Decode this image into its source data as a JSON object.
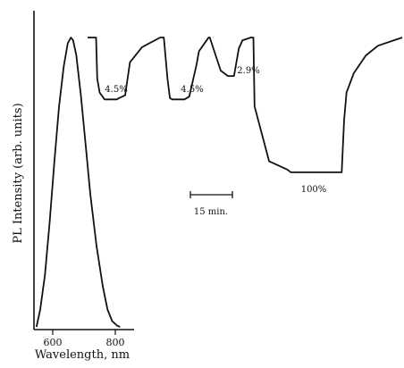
{
  "chart_data": [
    {
      "type": "line",
      "title": "",
      "xlabel": "Wavelength, nm",
      "ylabel": "PL Intensity (arb. units)",
      "x_ticks": [
        600,
        800
      ],
      "xlim": [
        540,
        860
      ],
      "grid": false,
      "series": [
        {
          "values_note": "",
          "x": [
            548,
            560,
            575,
            590,
            605,
            620,
            635,
            648,
            658,
            665,
            675,
            690,
            705,
            720,
            740,
            760,
            775,
            790,
            805,
            815
          ],
          "y": [
            0.0,
            0.06,
            0.18,
            0.36,
            0.57,
            0.76,
            0.9,
            0.98,
            1.0,
            0.99,
            0.94,
            0.8,
            0.63,
            0.46,
            0.28,
            0.14,
            0.06,
            0.02,
            0.005,
            0.0
          ]
        }
      ]
    },
    {
      "type": "line",
      "title": "",
      "xlabel": "",
      "ylabel": "",
      "scale_bar": "15 min.",
      "grid": false,
      "annotations": [
        "4.5%",
        "4.5%",
        "2.9%",
        "100%"
      ],
      "series": [
        {
          "x": [
            0,
            7,
            8,
            10,
            14,
            24,
            26,
            31,
            35,
            45,
            60,
            63,
            66,
            68,
            70,
            80,
            84,
            90,
            92,
            96,
            100,
            101,
            110,
            116,
            119,
            121,
            125,
            128,
            135,
            137,
            138,
            150,
            165,
            168,
            170,
            171,
            172,
            180,
            190,
            200,
            210,
            212,
            214,
            220,
            230,
            240,
            260
          ],
          "y": [
            1.0,
            1.0,
            0.7,
            0.6,
            0.55,
            0.55,
            0.56,
            0.58,
            0.82,
            0.93,
            1.0,
            1.0,
            0.7,
            0.56,
            0.55,
            0.55,
            0.57,
            0.8,
            0.9,
            0.95,
            1.0,
            1.0,
            0.76,
            0.72,
            0.72,
            0.72,
            0.92,
            0.98,
            1.0,
            1.0,
            0.5,
            0.1,
            0.04,
            0.02,
            0.02,
            0.02,
            0.02,
            0.02,
            0.02,
            0.02,
            0.02,
            0.4,
            0.6,
            0.74,
            0.87,
            0.94,
            1.0
          ]
        }
      ]
    }
  ]
}
